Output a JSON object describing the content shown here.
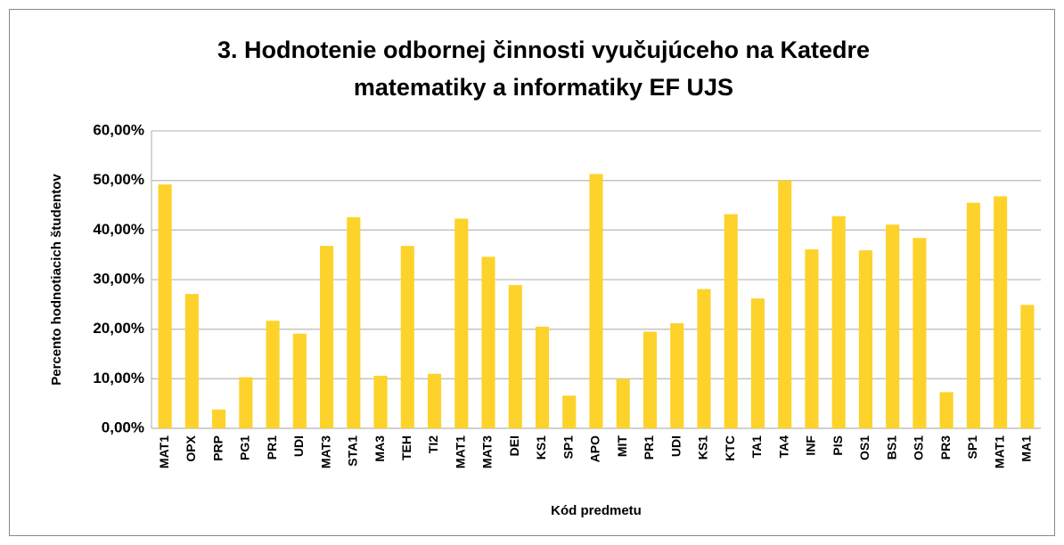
{
  "chart_data": {
    "type": "bar",
    "title": [
      "3. Hodnotenie odbornej činnosti vyučujúceho na Katedre",
      "matematiky a informatiky EF UJS"
    ],
    "x_label": "Kód predmetu",
    "y_label": "Percento hodnotiacich študentov",
    "categories": [
      "MAT1",
      "OPX",
      "PRP",
      "PG1",
      "PR1",
      "UDI",
      "MAT3",
      "STA1",
      "MA3",
      "TEH",
      "TI2",
      "MAT1",
      "MAT3",
      "DEI",
      "KS1",
      "SP1",
      "APO",
      "MIT",
      "PR1",
      "UDI",
      "KS1",
      "KTC",
      "TA1",
      "TA4",
      "INF",
      "PIS",
      "OS1",
      "BS1",
      "OS1",
      "PR3",
      "SP1",
      "MAT1",
      "MA1"
    ],
    "values": [
      49.2,
      27.1,
      3.8,
      10.3,
      21.7,
      19.1,
      36.8,
      42.6,
      10.6,
      36.8,
      11.0,
      42.3,
      34.6,
      28.9,
      20.5,
      6.6,
      51.3,
      10.0,
      19.5,
      21.2,
      28.1,
      43.2,
      26.2,
      50.0,
      36.1,
      42.8,
      35.9,
      41.1,
      38.4,
      7.3,
      45.5,
      46.8,
      24.9
    ],
    "color": "#fdd22b",
    "ylim": [
      0,
      60
    ],
    "yticks": [
      {
        "value": 0,
        "label": "0,00%"
      },
      {
        "value": 10,
        "label": "10,00%"
      },
      {
        "value": 20,
        "label": "20,00%"
      },
      {
        "value": 30,
        "label": "30,00%"
      },
      {
        "value": 40,
        "label": "40,00%"
      },
      {
        "value": 50,
        "label": "50,00%"
      },
      {
        "value": 60,
        "label": "60,00%"
      }
    ],
    "grid": true
  }
}
